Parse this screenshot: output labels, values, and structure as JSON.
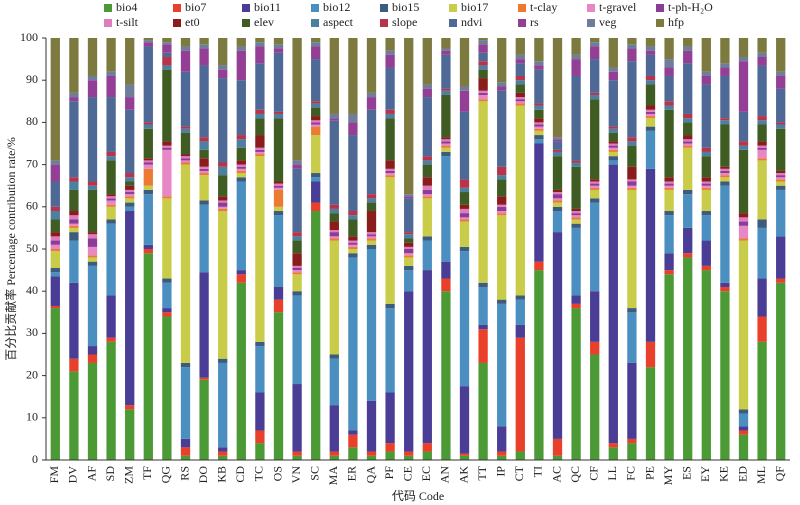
{
  "chart_data": {
    "type": "stacked_bar",
    "y_label": "百分比贡献率 Percentage contribution rate/%",
    "x_label": "代码 Code",
    "categories": [
      "FM",
      "DV",
      "AF",
      "SD",
      "ZM",
      "TF",
      "QG",
      "RS",
      "DO",
      "KB",
      "CD",
      "TC",
      "OS",
      "VN",
      "SC",
      "MA",
      "ER",
      "QA",
      "PF",
      "CE",
      "EC",
      "AN",
      "AK",
      "TT",
      "IP",
      "CT",
      "TI",
      "AC",
      "QC",
      "CF",
      "LL",
      "FC",
      "PE",
      "MY",
      "ES",
      "EY",
      "KE",
      "ED",
      "ML",
      "QF"
    ],
    "ylim": [
      0,
      100
    ],
    "yticks": [
      0,
      10,
      20,
      30,
      40,
      50,
      60,
      70,
      80,
      90,
      100
    ],
    "series": [
      {
        "name": "bio4",
        "color": "#4c9a36",
        "values": [
          36,
          21,
          23,
          28,
          12,
          49,
          34,
          1,
          19,
          1,
          42,
          4,
          35,
          1,
          59,
          1,
          3,
          1,
          2,
          1,
          2,
          40,
          1,
          23,
          1,
          2,
          45,
          1,
          36,
          25,
          3,
          4,
          22,
          44,
          48,
          45,
          40,
          6,
          28,
          42
        ]
      },
      {
        "name": "bio7",
        "color": "#e8402a",
        "values": [
          0.5,
          3,
          2,
          1,
          1,
          1,
          1,
          2,
          0.5,
          1,
          2,
          3,
          3,
          1,
          2,
          1,
          3,
          1,
          2,
          1,
          2,
          3,
          0.5,
          8,
          1,
          27,
          2,
          4,
          1,
          3,
          1,
          1,
          6,
          1,
          1,
          1,
          1,
          1,
          6,
          1
        ]
      },
      {
        "name": "bio11",
        "color": "#4a3d96",
        "values": [
          7,
          18,
          2,
          10,
          46,
          1,
          1,
          2,
          25,
          1,
          1,
          9,
          3,
          16,
          5,
          11,
          1,
          12,
          12,
          38,
          41,
          4,
          16,
          1,
          6,
          3,
          28,
          49,
          2,
          12,
          66,
          18,
          41,
          4,
          6,
          6,
          1,
          1,
          9,
          10
        ]
      },
      {
        "name": "bio12",
        "color": "#4a8fc0",
        "values": [
          1,
          10,
          19,
          17,
          1,
          12,
          6,
          17,
          16,
          20,
          21,
          11,
          17,
          21,
          1,
          11,
          41,
          36,
          20,
          5,
          7,
          25,
          32,
          9,
          29,
          6,
          1,
          5,
          16,
          21,
          1,
          12,
          9,
          9,
          8,
          6,
          23,
          3,
          12,
          11
        ]
      },
      {
        "name": "bio15",
        "color": "#3d5b7c",
        "values": [
          1,
          2,
          1,
          1,
          1,
          1,
          1,
          1,
          1,
          1,
          1,
          1,
          1,
          1,
          1,
          1,
          1,
          1,
          1,
          1,
          1,
          1,
          1,
          1,
          1,
          1,
          1,
          1,
          1,
          1,
          1,
          1,
          1,
          1,
          1,
          1,
          1,
          1,
          2,
          1
        ]
      },
      {
        "name": "bio17",
        "color": "#c8cc48",
        "values": [
          4,
          1,
          1,
          3,
          1,
          1,
          19,
          47,
          6,
          35,
          1,
          44,
          1,
          4,
          9,
          27,
          1,
          1,
          30,
          2,
          9,
          1,
          6,
          43,
          20,
          45,
          1,
          1,
          1,
          2,
          1,
          28,
          2,
          5,
          10,
          5,
          1,
          40,
          14,
          1
        ]
      },
      {
        "name": "t-clay",
        "color": "#ec7a33",
        "values": [
          0.5,
          0.5,
          0.5,
          0.5,
          0.5,
          4,
          0.5,
          0.5,
          0.5,
          0.5,
          0.5,
          0.5,
          4,
          0.5,
          2,
          0.5,
          0.5,
          0.5,
          0.5,
          0.5,
          0.5,
          0.5,
          0.5,
          0.5,
          0.5,
          0.5,
          0.5,
          0.5,
          0.5,
          0.5,
          0.5,
          0.5,
          0.5,
          0.5,
          0.5,
          0.5,
          0.5,
          0.5,
          0.5,
          0.5
        ]
      },
      {
        "name": "t-gravel",
        "color": "#e887c5",
        "values": [
          1,
          0.5,
          2,
          1,
          0.5,
          1,
          11,
          0.5,
          0.5,
          0.5,
          0.5,
          0.5,
          0.5,
          0.5,
          0.5,
          0.5,
          0.5,
          0.5,
          0.5,
          0.5,
          0.5,
          0.5,
          0.5,
          1,
          0.5,
          0.5,
          0.5,
          0.5,
          0.5,
          0.5,
          0.5,
          0.5,
          0.5,
          0.5,
          0.5,
          0.5,
          0.5,
          3,
          2,
          0.5
        ]
      },
      {
        "name": "t-ph-H₂O",
        "color": "#8a3c96",
        "values": [
          1,
          1,
          2,
          0.5,
          0.5,
          0.5,
          0.5,
          0.5,
          0.5,
          1,
          0.5,
          0.5,
          0.5,
          0.5,
          0.5,
          1,
          0.5,
          0.5,
          0.5,
          1,
          1,
          0.5,
          1,
          0.5,
          1,
          0.5,
          0.5,
          1,
          0.5,
          0.5,
          0.5,
          1,
          0.5,
          0.5,
          0.5,
          0.5,
          0.5,
          1,
          0.5,
          0.5
        ]
      },
      {
        "name": "t-silt",
        "color": "#e07bbd",
        "values": [
          1,
          1,
          1,
          0.5,
          0.5,
          0.5,
          0.5,
          0.5,
          0.5,
          0.5,
          0.5,
          0.5,
          0.5,
          0.5,
          0.5,
          0.5,
          0.5,
          0.5,
          0.5,
          0.5,
          1,
          0.5,
          1,
          0.5,
          0.5,
          0.5,
          0.5,
          0.5,
          0.5,
          0.5,
          0.5,
          0.5,
          0.5,
          0.5,
          0.5,
          0.5,
          0.5,
          1,
          0.5,
          0.5
        ]
      },
      {
        "name": "et0",
        "color": "#8b1c1c",
        "values": [
          1,
          1,
          0.5,
          0.5,
          1,
          0.5,
          1,
          0.5,
          2,
          1,
          1,
          3,
          0.5,
          3,
          1,
          2,
          1,
          5,
          2,
          1,
          2,
          0.5,
          1,
          3,
          2,
          1,
          1,
          0.5,
          0.5,
          0.5,
          0.5,
          3,
          1,
          1,
          1,
          1,
          0.5,
          1,
          1,
          0.5
        ]
      },
      {
        "name": "elev",
        "color": "#3f5c22",
        "values": [
          3,
          5,
          10,
          8,
          1,
          7,
          17,
          5,
          2,
          5,
          3,
          4,
          15,
          3,
          2,
          2,
          4,
          2,
          10,
          1,
          3,
          10,
          3,
          2,
          4,
          2,
          2,
          8,
          10,
          19,
          2,
          5,
          5,
          16,
          3,
          5,
          10,
          15,
          4,
          10
        ]
      },
      {
        "name": "aspect",
        "color": "#4d7fa0",
        "values": [
          2,
          2,
          1,
          1,
          1,
          1,
          1,
          1,
          2,
          2,
          2,
          1,
          1,
          1,
          1,
          1,
          1,
          1,
          1,
          1,
          1,
          1,
          1,
          1,
          1,
          1,
          1,
          1,
          1,
          1,
          1,
          1,
          1,
          1,
          1,
          1,
          1,
          1,
          1,
          1
        ]
      },
      {
        "name": "slope",
        "color": "#b8344a",
        "values": [
          1,
          1,
          1,
          1,
          1,
          0.5,
          2,
          0.5,
          1,
          1,
          1,
          1,
          0.5,
          1,
          0.5,
          1,
          1,
          1,
          1,
          0.5,
          1,
          0.5,
          2,
          1,
          2,
          1,
          0.5,
          0.5,
          0.5,
          0.5,
          0.5,
          1,
          1,
          1,
          1,
          1,
          0.5,
          1,
          1,
          0.5
        ]
      },
      {
        "name": "ndvi",
        "color": "#4e6996",
        "values": [
          6,
          18,
          20,
          13,
          15,
          18,
          1,
          13,
          17,
          20,
          13,
          11,
          14,
          15,
          10,
          20,
          18,
          20,
          10,
          8,
          14,
          8,
          16,
          2,
          18,
          3,
          8,
          2,
          20,
          8,
          11,
          18,
          5,
          6,
          12,
          15,
          10,
          7,
          12,
          8
        ]
      },
      {
        "name": "rs",
        "color": "#943f96",
        "values": [
          4,
          1,
          4,
          5,
          3,
          1,
          2,
          5,
          4,
          2,
          7,
          4,
          1,
          1,
          3,
          0.5,
          3,
          3,
          3,
          0.5,
          2,
          1,
          5,
          2,
          1,
          1,
          1,
          0.5,
          4,
          3,
          2,
          3,
          1,
          2,
          3,
          2,
          2,
          12,
          2,
          3
        ]
      },
      {
        "name": "veg",
        "color": "#6f7d9a",
        "values": [
          1,
          1,
          1,
          1,
          3,
          0.5,
          0.5,
          1,
          1,
          1,
          1,
          1,
          1,
          1,
          1,
          1,
          2,
          1,
          1,
          0.5,
          1,
          0.5,
          1,
          1,
          1,
          1,
          1,
          0.5,
          1,
          1,
          1,
          1,
          1,
          2,
          1,
          1,
          1,
          1,
          1,
          1
        ]
      },
      {
        "name": "hfp",
        "color": "#7c7a3e",
        "values": [
          29,
          13,
          9,
          8,
          11,
          0.5,
          1,
          2,
          1.5,
          6.5,
          2,
          1,
          1.5,
          29,
          1,
          18,
          18,
          13,
          3,
          37,
          11,
          2.5,
          11.5,
          0.5,
          10.5,
          4,
          5.5,
          23.5,
          4,
          1,
          7,
          1.5,
          2,
          5,
          2,
          8,
          6,
          4.5,
          3.5,
          8
        ]
      }
    ]
  }
}
